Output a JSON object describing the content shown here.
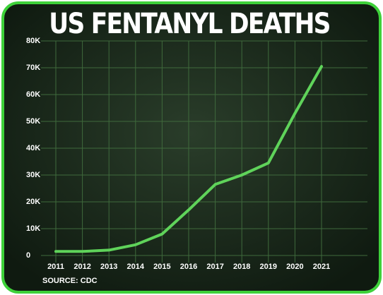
{
  "chart_data": {
    "type": "line",
    "title": "US FENTANYL DEATHS",
    "source": "SOURCE: CDC",
    "categories": [
      "2011",
      "2012",
      "2013",
      "2014",
      "2015",
      "2016",
      "2017",
      "2018",
      "2019",
      "2020",
      "2021"
    ],
    "series": [
      {
        "color": "#5fd35a",
        "values": [
          1500,
          1500,
          2000,
          4000,
          8000,
          17000,
          26500,
          30000,
          34500,
          53000,
          70500
        ]
      }
    ],
    "ylim": [
      0,
      80000
    ],
    "yticks": [
      0,
      {
        "value": 10000,
        "label": "10K"
      },
      {
        "value": 20000,
        "label": "20K"
      },
      {
        "value": 30000,
        "label": "30K"
      },
      {
        "value": 40000,
        "label": "40K"
      },
      {
        "value": 50000,
        "label": "50K"
      },
      {
        "value": 60000,
        "label": "60K"
      },
      {
        "value": 70000,
        "label": "70K"
      },
      {
        "value": 80000,
        "label": "80K"
      }
    ],
    "grid": true
  }
}
